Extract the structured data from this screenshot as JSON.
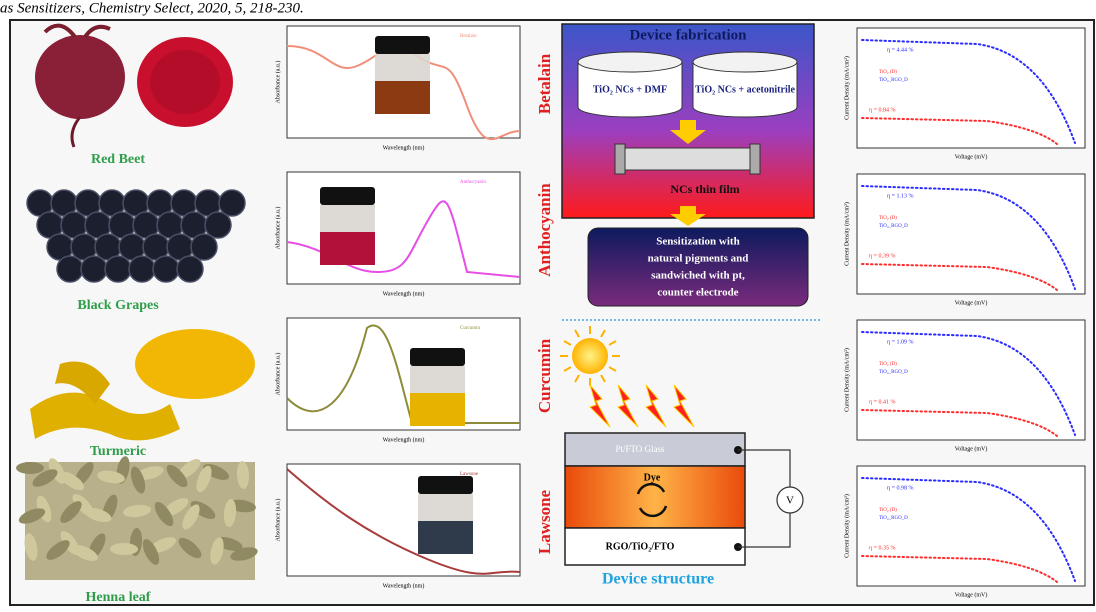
{
  "caption": "as Sensitizers, Chemistry Select, 2020, 5, 218-230.",
  "sources": [
    {
      "name": "Red Beet",
      "pigment": "Betalain"
    },
    {
      "name": "Black Grapes",
      "pigment": "Anthocyanin"
    },
    {
      "name": "Turmeric",
      "pigment": "Curcumin"
    },
    {
      "name": "Henna leaf",
      "pigment": "Lawsone"
    }
  ],
  "absorbance_axis": {
    "x_label": "Wavelength (nm)",
    "y_label": "Absorbance (a.u.)"
  },
  "fabrication": {
    "title": "Device fabrication",
    "solutions": [
      "TiO₂ NCs + DMF",
      "TiO₂ NCs + acetonitrile"
    ],
    "film": "NCs thin film",
    "sensitization": [
      "Sensitization with",
      "natural pigments and",
      "sandwiched with pt,",
      "counter electrode"
    ]
  },
  "structure": {
    "title": "Device structure",
    "top": "Pt/FTO Glass",
    "dye": "Dye",
    "bottom": "RGO/TiO₂/FTO",
    "meter": "V"
  },
  "jv": {
    "x_label": "Voltage (mV)",
    "y_label": "Current Density (mA/cm²)",
    "legend": [
      "TiO₂ (D)",
      "TiO₂_RGO_D"
    ],
    "panels": [
      {
        "eta_high": "η = 4.44 %",
        "eta_low": "η = 0.84 %"
      },
      {
        "eta_high": "η = 1.13 %",
        "eta_low": "η = 0.39 %"
      },
      {
        "eta_high": "η = 1.09 %",
        "eta_low": "η = 0.41 %"
      },
      {
        "eta_high": "η = 0.98 %",
        "eta_low": "η = 0.35 %"
      }
    ]
  }
}
